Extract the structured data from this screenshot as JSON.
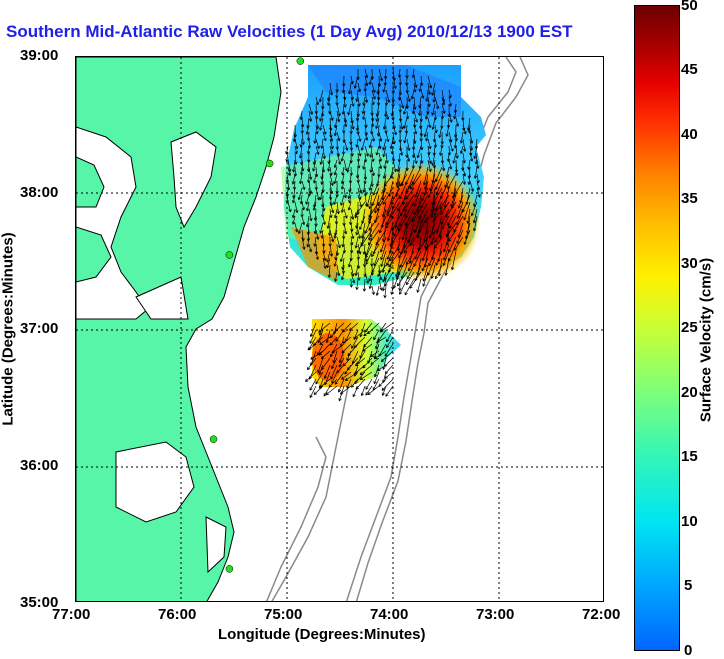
{
  "title": "Southern Mid-Atlantic Raw Velocities (1 Day Avg) 2010/12/13 1900 EST",
  "axes": {
    "xlabel": "Longitude (Degrees:Minutes)",
    "ylabel": "Latitude (Degrees:Minutes)",
    "x_ticks": [
      "77:00",
      "76:00",
      "75:00",
      "74:00",
      "73:00",
      "72:00"
    ],
    "y_ticks": [
      "39:00",
      "38:00",
      "37:00",
      "36:00",
      "35:00"
    ],
    "x_range": [
      -77,
      -72
    ],
    "y_range": [
      35,
      39
    ]
  },
  "colorbar": {
    "label": "Surface Velocity (cm/s)",
    "ticks": [
      "50",
      "45",
      "40",
      "35",
      "30",
      "25",
      "20",
      "15",
      "10",
      "5",
      "0"
    ],
    "range": [
      0,
      50
    ]
  },
  "colors": {
    "land": "#57f5a8",
    "coast": "#000000",
    "bathymetry": "#8a8a8a",
    "title": "#1f1fe8",
    "station": "#20e020"
  },
  "stations": [
    {
      "lon": -74.88,
      "lat": 38.97
    },
    {
      "lon": -75.17,
      "lat": 38.22
    },
    {
      "lon": -75.55,
      "lat": 37.55
    },
    {
      "lon": -75.7,
      "lat": 36.2
    },
    {
      "lon": -75.55,
      "lat": 35.25
    }
  ]
}
